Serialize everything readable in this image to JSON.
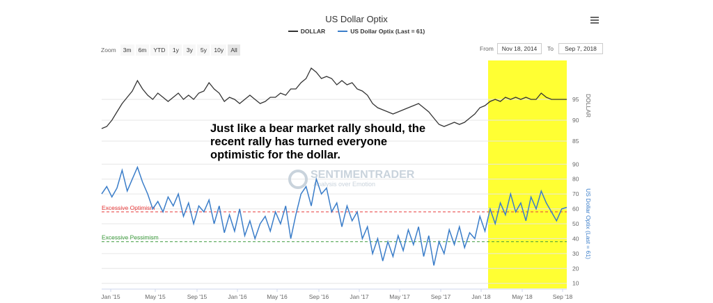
{
  "chart_data": {
    "type": "line",
    "title": "US Dollar Optix",
    "legend": [
      "DOLLAR",
      "US Dollar Optix (Last = 61)"
    ],
    "x_ticks": [
      "Jan '15",
      "May '15",
      "Sep '15",
      "Jan '16",
      "May '16",
      "Sep '16",
      "Jan '17",
      "May '17",
      "Sep '17",
      "Jan '18",
      "May '18",
      "Sep '18"
    ],
    "dollar_axis": {
      "label": "DOLLAR",
      "ticks": [
        85,
        90,
        95
      ],
      "range": [
        83,
        103
      ]
    },
    "optix_axis": {
      "label": "US Dollar Optix (Last = 61)",
      "ticks": [
        10,
        20,
        30,
        40,
        50,
        60,
        70,
        80,
        90
      ],
      "range": [
        8,
        92
      ]
    },
    "excessive_optimism": {
      "label": "Excessive Optimism",
      "value": 58,
      "color": "#e83a3a"
    },
    "excessive_pessimism": {
      "label": "Excessive Pessimism",
      "value": 38,
      "color": "#3a9a3a"
    },
    "highlight_range": [
      "Feb '18",
      "Sep '18"
    ],
    "dollar_series": {
      "name": "DOLLAR",
      "color": "#333333",
      "x": [
        0,
        0.5,
        1,
        1.5,
        2,
        2.5,
        3,
        3.5,
        4,
        4.5,
        5,
        5.5,
        6,
        6.5,
        7,
        7.5,
        8,
        8.5,
        9,
        9.5,
        10,
        10.5,
        11,
        11.5,
        12,
        12.5,
        13,
        13.5,
        14,
        14.5,
        15,
        15.5,
        16,
        16.5,
        17,
        17.5,
        18,
        18.5,
        19,
        19.5,
        20,
        20.5,
        21,
        21.5,
        22,
        22.5,
        23,
        23.5,
        24,
        24.5,
        25,
        25.5,
        26,
        26.5,
        27,
        27.5,
        28,
        28.5,
        29,
        29.5,
        30,
        30.5,
        31,
        31.5,
        32,
        32.5,
        33,
        33.5,
        34,
        34.5,
        35,
        35.5,
        36,
        36.5,
        37,
        37.5,
        38,
        38.5,
        39,
        39.5,
        40,
        40.5,
        41,
        41.5,
        42,
        42.5,
        43,
        43.5,
        44,
        44.5,
        45,
        45.5
      ],
      "values": [
        88,
        88.5,
        90,
        92,
        94,
        95.5,
        97,
        99.5,
        97.5,
        96,
        95,
        96.5,
        95.5,
        94.5,
        95.5,
        96.5,
        95,
        96,
        95,
        96.5,
        97,
        99,
        97.5,
        96.5,
        94.5,
        95.5,
        95,
        94,
        95,
        96,
        95,
        94,
        94.5,
        95.5,
        95.5,
        96.5,
        96,
        97.5,
        97.5,
        99,
        100,
        102.5,
        101.5,
        100,
        100.5,
        100,
        98.5,
        99.5,
        98.5,
        99,
        97.5,
        97,
        96,
        94,
        93,
        92.5,
        92,
        91.5,
        92,
        92.5,
        93,
        93.5,
        94,
        93,
        92,
        90.5,
        89,
        88.5,
        89,
        89.5,
        89,
        89.5,
        90.5,
        91.5,
        93,
        93.5,
        94.5,
        95,
        94.5,
        95.5,
        95,
        95.5,
        95,
        95.5,
        95,
        95,
        96.5,
        95.5,
        95,
        95,
        95,
        95
      ]
    },
    "optix_series": {
      "name": "US Dollar Optix (Last = 61)",
      "color": "#3a7dc9",
      "x": [
        0,
        0.5,
        1,
        1.5,
        2,
        2.5,
        3,
        3.5,
        4,
        4.5,
        5,
        5.5,
        6,
        6.5,
        7,
        7.5,
        8,
        8.5,
        9,
        9.5,
        10,
        10.5,
        11,
        11.5,
        12,
        12.5,
        13,
        13.5,
        14,
        14.5,
        15,
        15.5,
        16,
        16.5,
        17,
        17.5,
        18,
        18.5,
        19,
        19.5,
        20,
        20.5,
        21,
        21.5,
        22,
        22.5,
        23,
        23.5,
        24,
        24.5,
        25,
        25.5,
        26,
        26.5,
        27,
        27.5,
        28,
        28.5,
        29,
        29.5,
        30,
        30.5,
        31,
        31.5,
        32,
        32.5,
        33,
        33.5,
        34,
        34.5,
        35,
        35.5,
        36,
        36.5,
        37,
        37.5,
        38,
        38.5,
        39,
        39.5,
        40,
        40.5,
        41,
        41.5,
        42,
        42.5,
        43,
        43.5,
        44,
        44.5,
        45,
        45.5
      ],
      "values": [
        70,
        75,
        68,
        74,
        86,
        72,
        80,
        88,
        78,
        70,
        60,
        65,
        58,
        68,
        62,
        70,
        55,
        64,
        50,
        62,
        58,
        66,
        50,
        62,
        44,
        56,
        45,
        60,
        42,
        52,
        40,
        50,
        55,
        45,
        58,
        50,
        62,
        40,
        56,
        70,
        75,
        62,
        80,
        70,
        74,
        58,
        64,
        48,
        62,
        52,
        58,
        40,
        48,
        30,
        40,
        25,
        38,
        28,
        42,
        32,
        46,
        36,
        48,
        28,
        42,
        22,
        38,
        30,
        46,
        36,
        48,
        34,
        44,
        40,
        55,
        45,
        60,
        50,
        64,
        56,
        70,
        58,
        64,
        52,
        68,
        60,
        72,
        64,
        58,
        52,
        60,
        61
      ]
    }
  },
  "header": {
    "menu_icon": "hamburger-menu-icon"
  },
  "zoom": {
    "label": "Zoom",
    "buttons": [
      "3m",
      "6m",
      "YTD",
      "1y",
      "3y",
      "5y",
      "10y",
      "All"
    ]
  },
  "range": {
    "from_label": "From",
    "from_value": "Nov 18, 2014",
    "to_label": "To",
    "to_value": "Sep 7, 2018"
  },
  "annotation": {
    "text": "Just like a bear market rally should, the\nrecent rally has turned everyone\noptimistic for the dollar."
  },
  "watermark": {
    "name": "SENTIMENTRADER",
    "tagline": "Analysis over Emotion"
  },
  "colors": {
    "highlight": "#ffff33",
    "grid": "#e6e6e6"
  }
}
